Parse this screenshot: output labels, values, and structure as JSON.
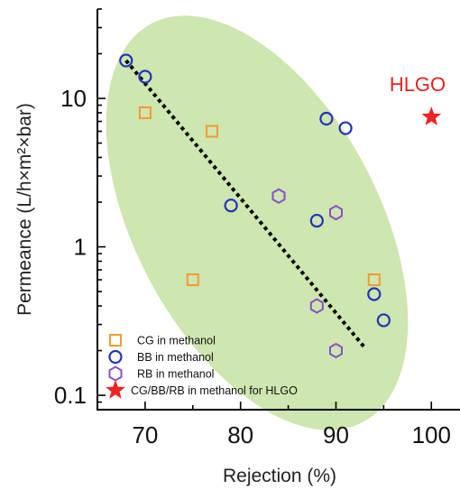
{
  "chart_data": {
    "type": "scatter",
    "xlabel": "Rejection (%)",
    "ylabel": "Permeance (L/h×m²×bar)",
    "xlim": [
      65,
      103
    ],
    "ylim": [
      0.08,
      40
    ],
    "yscale": "log",
    "x_ticks": [
      70,
      80,
      90,
      100
    ],
    "y_ticks": [
      0.1,
      1,
      10
    ],
    "y_tick_labels": [
      "0.1",
      "1",
      "10"
    ],
    "legend_position": "bottom-left",
    "ellipse": {
      "color": "#c9e3a6"
    },
    "trendline": {
      "style": "dotted",
      "color": "#000000",
      "points": [
        [
          68,
          18
        ],
        [
          93,
          0.21
        ]
      ]
    },
    "annotation": {
      "text": "HLGO",
      "color": "#e8231f"
    },
    "series": [
      {
        "name": "CG in methanol",
        "marker": "square",
        "color": "#f29b30",
        "points": [
          [
            70,
            8
          ],
          [
            77,
            6
          ],
          [
            75,
            0.6
          ],
          [
            94,
            0.6
          ]
        ]
      },
      {
        "name": "BB in methanol",
        "marker": "circle",
        "color": "#2233bb",
        "points": [
          [
            68,
            18
          ],
          [
            70,
            14
          ],
          [
            79,
            1.9
          ],
          [
            88,
            1.5
          ],
          [
            89,
            7.3
          ],
          [
            91,
            6.3
          ],
          [
            94,
            0.48
          ],
          [
            95,
            0.32
          ]
        ]
      },
      {
        "name": "RB in methanol",
        "marker": "hexagon",
        "color": "#8a4fc9",
        "points": [
          [
            84,
            2.2
          ],
          [
            90,
            1.7
          ],
          [
            88,
            0.4
          ],
          [
            90,
            0.2
          ]
        ]
      },
      {
        "name": "CG/BB/RB in methanol for HLGO",
        "marker": "star",
        "color": "#ee2222",
        "points": [
          [
            100,
            7.5
          ]
        ]
      }
    ]
  }
}
